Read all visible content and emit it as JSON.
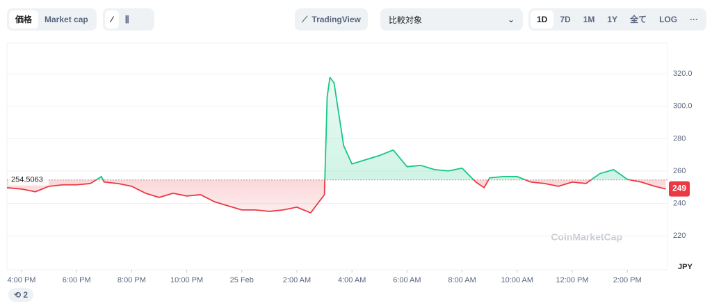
{
  "toolbar": {
    "metric_tabs": [
      "価格",
      "Market cap"
    ],
    "tradingview": "TradingView",
    "compare": "比較対象",
    "ranges": [
      "1D",
      "7D",
      "1M",
      "1Y",
      "全て"
    ],
    "log": "LOG",
    "more": "···"
  },
  "badge": "2",
  "chart_data": {
    "type": "line",
    "watermark": "CoinMarketCap",
    "y_unit": "JPY",
    "baseline": 254.5063,
    "current_price": 249,
    "up_color": "#16c784",
    "down_color": "#ea3943",
    "xlim": [
      -0.53,
      23.46
    ],
    "ylim": [
      199,
      339
    ],
    "xticks": [
      {
        "value": 0,
        "label": "4:00 PM"
      },
      {
        "value": 2,
        "label": "6:00 PM"
      },
      {
        "value": 4,
        "label": "8:00 PM"
      },
      {
        "value": 6,
        "label": "10:00 PM"
      },
      {
        "value": 8,
        "label": "25 Feb"
      },
      {
        "value": 10,
        "label": "2:00 AM"
      },
      {
        "value": 12,
        "label": "4:00 AM"
      },
      {
        "value": 14,
        "label": "6:00 AM"
      },
      {
        "value": 16,
        "label": "8:00 AM"
      },
      {
        "value": 18,
        "label": "10:00 AM"
      },
      {
        "value": 20,
        "label": "12:00 PM"
      },
      {
        "value": 22,
        "label": "2:00 PM"
      }
    ],
    "yticks": [
      220,
      240,
      260,
      280,
      {
        "value": 300,
        "label": "300.0"
      },
      {
        "value": 320,
        "label": "320.0"
      }
    ],
    "grid": true,
    "x": [
      -0.53,
      0,
      0.5,
      1,
      1.5,
      2,
      2.5,
      2.9,
      3,
      3.5,
      4,
      4.5,
      5,
      5.5,
      6,
      6.5,
      7,
      7.5,
      8,
      8.5,
      9,
      9.5,
      10,
      10.5,
      11,
      11.1,
      11.2,
      11.35,
      11.7,
      12,
      12.5,
      13,
      13.5,
      14,
      14.5,
      15,
      15.5,
      16,
      16.5,
      16.8,
      17,
      17.5,
      18,
      18.5,
      19,
      19.5,
      20,
      20.5,
      21,
      21.5,
      22,
      22.5,
      23,
      23.4
    ],
    "values": [
      249.7,
      248.9,
      247.2,
      250.6,
      251.5,
      251.5,
      252.3,
      256.6,
      253.2,
      252.3,
      250.6,
      246.3,
      243.7,
      246.3,
      244.6,
      245.4,
      241.1,
      238.5,
      236.0,
      236.0,
      235.1,
      236.0,
      237.7,
      234.2,
      245.4,
      305.8,
      317.8,
      314.4,
      275.6,
      264.4,
      267.0,
      269.6,
      273.0,
      262.7,
      263.5,
      260.9,
      260.1,
      261.8,
      253.2,
      249.7,
      255.8,
      256.6,
      256.6,
      253.2,
      252.3,
      250.6,
      253.2,
      252.3,
      258.4,
      260.9,
      254.9,
      253.2,
      250.6,
      248.9
    ]
  }
}
